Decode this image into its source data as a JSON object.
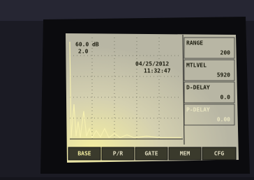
{
  "screen": {
    "gain": "60.0 dB",
    "step": "2.0",
    "date": "04/25/2012",
    "time": "11:32:47",
    "params": [
      {
        "label": "RANGE",
        "value": "200"
      },
      {
        "label": "MTLVEL",
        "value": "5920"
      },
      {
        "label": "D-DELAY",
        "value": "0.0"
      },
      {
        "label": "P-DELAY",
        "value": "0.00"
      }
    ],
    "buttons": [
      "BASE",
      "P/R",
      "GATE",
      "MEM",
      "CFG"
    ]
  }
}
